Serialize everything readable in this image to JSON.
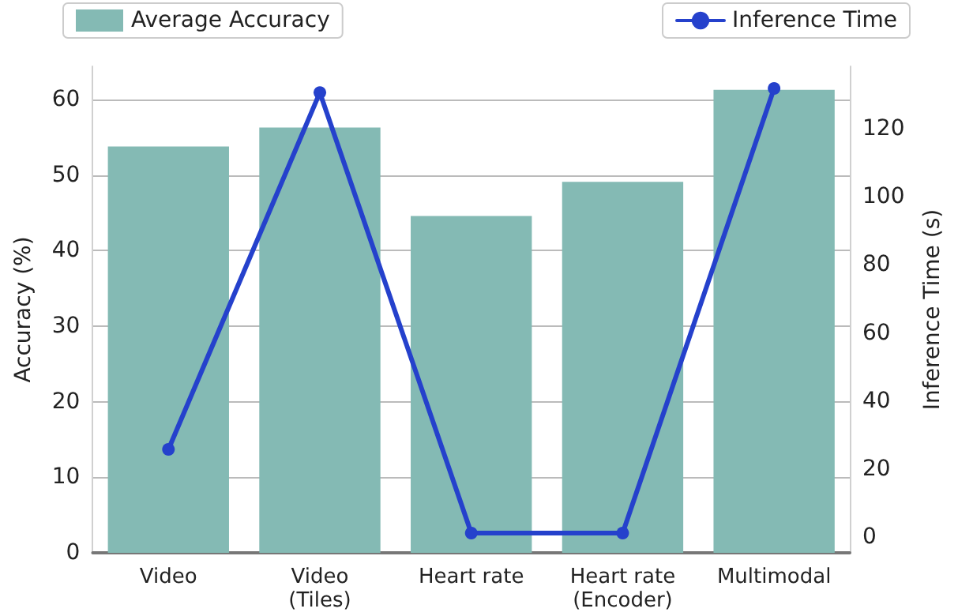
{
  "chart_data": {
    "type": "bar",
    "categories": [
      "Video",
      "Video\n(Tiles)",
      "Heart rate",
      "Heart rate\n(Encoder)",
      "Multimodal"
    ],
    "series": [
      {
        "name": "Average Accuracy",
        "color": "#84bab4",
        "values": [
          53.8,
          56.3,
          44.6,
          49.1,
          61.3
        ]
      },
      {
        "name": "Inference Time",
        "type": "line",
        "axis": "y2",
        "color": "#2541cc",
        "values": [
          25.8,
          130.6,
          1.2,
          1.2,
          131.8
        ]
      }
    ],
    "ylabel": "Accuracy (%)",
    "y2label": "Inference Time (s)",
    "ylim": [
      0,
      64.4
    ],
    "yticks": [
      0,
      10,
      20,
      30,
      40,
      50,
      60
    ],
    "y2lim": [
      -4.6,
      138.3
    ],
    "y2ticks": [
      0,
      20,
      40,
      60,
      80,
      100,
      120
    ],
    "grid": "y",
    "legend": "top",
    "marker": "circle",
    "line_style": "solid"
  }
}
